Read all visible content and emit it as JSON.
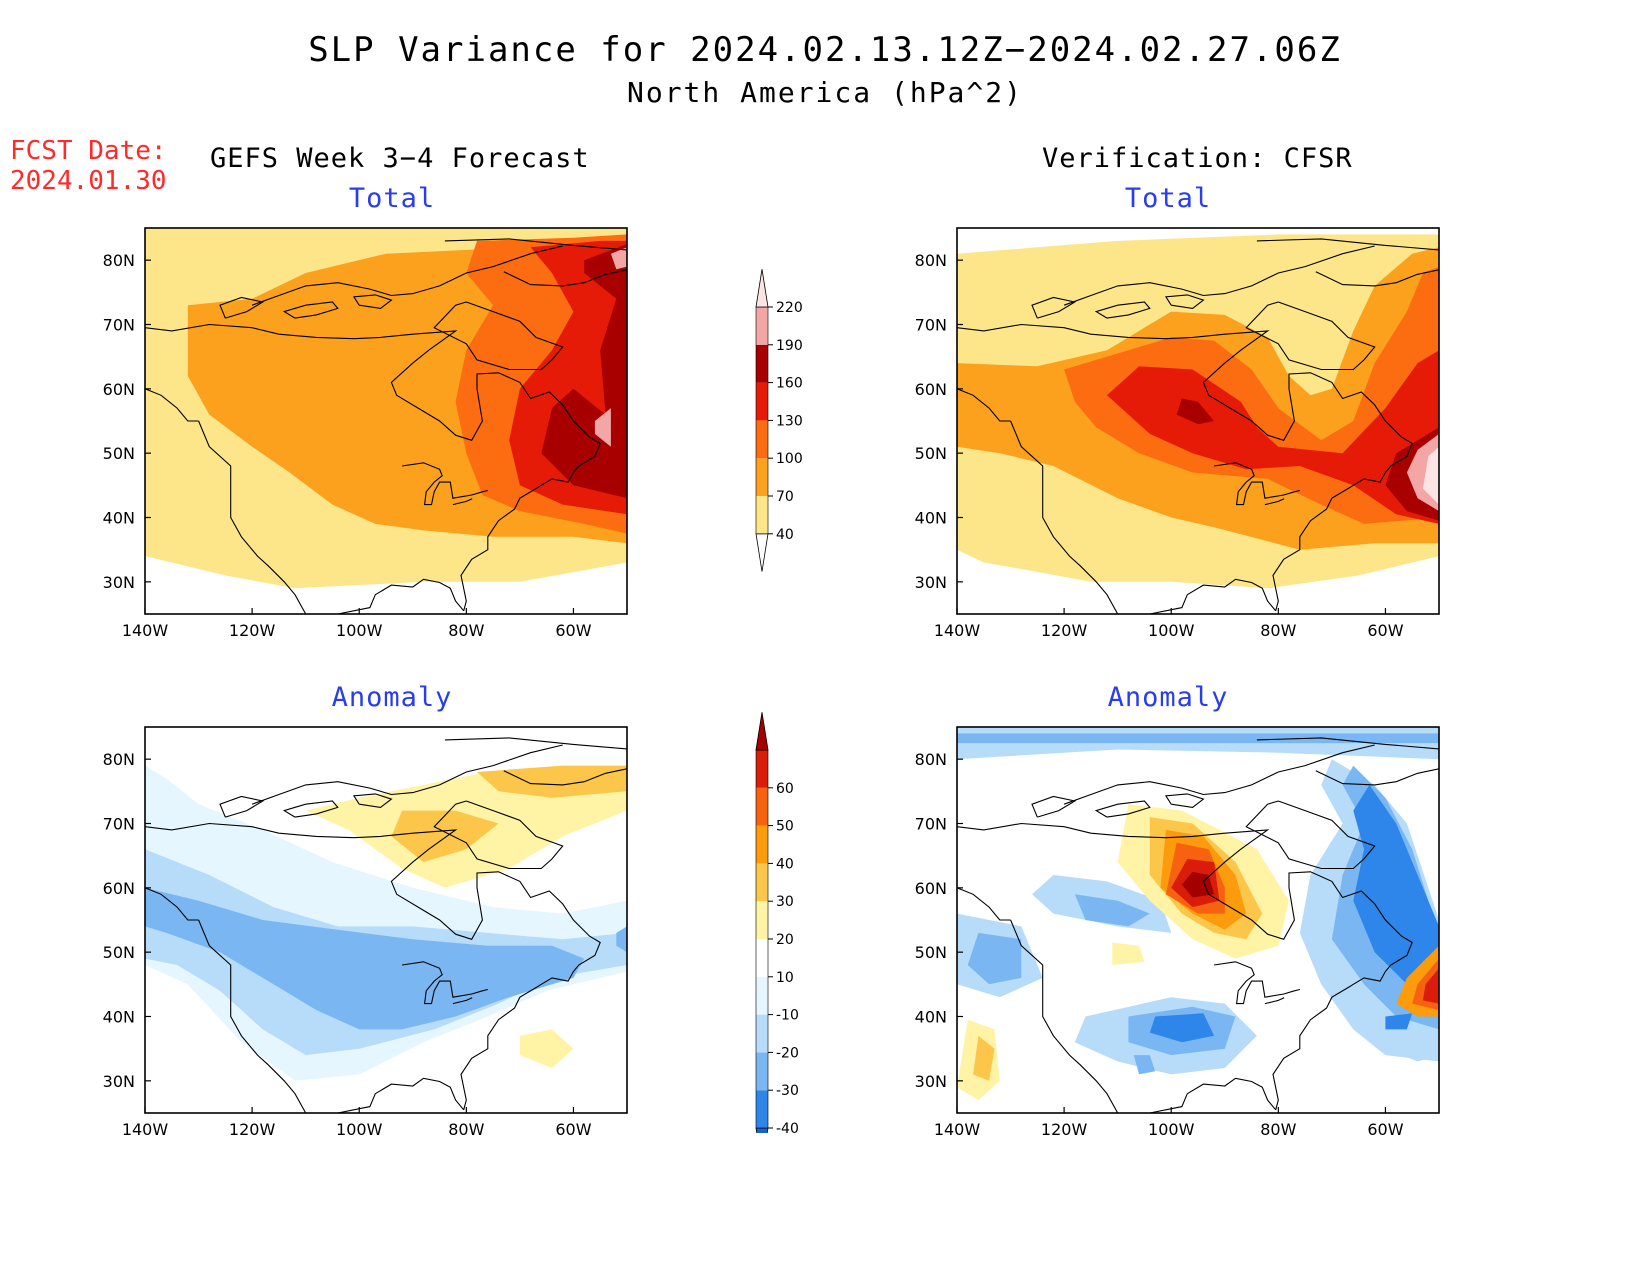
{
  "header": {
    "title": "SLP Variance for 2024.02.13.12Z−2024.02.27.06Z",
    "subtitle": "North America (hPa^2)",
    "fcst_label": "FCST Date:",
    "fcst_date": "2024.01.30"
  },
  "columns": {
    "left": "GEFS Week 3−4 Forecast",
    "right": "Verification: CFSR"
  },
  "panels": {
    "forecast_total_title": "Total",
    "verification_total_title": "Total",
    "forecast_anomaly_title": "Anomaly",
    "verification_anomaly_title": "Anomaly"
  },
  "axes": {
    "lon_labels": [
      "140W",
      "120W",
      "100W",
      "80W",
      "60W"
    ],
    "lon_values": [
      -140,
      -120,
      -100,
      -80,
      -60
    ],
    "lat_labels": [
      "30N",
      "40N",
      "50N",
      "60N",
      "70N",
      "80N"
    ],
    "lat_values": [
      30,
      40,
      50,
      60,
      70,
      80
    ],
    "lon_range": [
      -140,
      -50
    ],
    "lat_range": [
      25,
      85
    ]
  },
  "colorbars": {
    "total": {
      "levels": [
        "40",
        "70",
        "100",
        "130",
        "160",
        "190",
        "220"
      ],
      "colors": [
        "#ffffff",
        "#fde68a",
        "#fca11e",
        "#fb6d10",
        "#e61b07",
        "#a80000",
        "#f2a6a6",
        "#fde4e4"
      ]
    },
    "anomaly": {
      "levels": [
        "-40",
        "-30",
        "-20",
        "-10",
        "10",
        "20",
        "30",
        "40",
        "50",
        "60"
      ],
      "colors": [
        "#1565d0",
        "#2e86ea",
        "#7ab7f2",
        "#b6dcfa",
        "#e6f6fe",
        "#ffffff",
        "#fff3a6",
        "#fcc64a",
        "#fc9b0b",
        "#f76210",
        "#d91d0a",
        "#a50000"
      ]
    }
  }
}
